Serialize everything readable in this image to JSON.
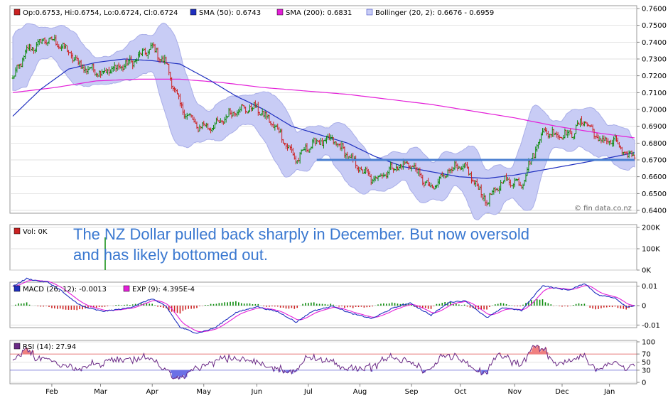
{
  "chart_data": {
    "type": "line",
    "price_panel": {
      "legend": {
        "ohlc": "Op:0.6753, Hi:0.6754, Lo:0.6724, Cl:0.6724",
        "sma50": "SMA (50): 0.6743",
        "sma200": "SMA (200): 0.6831",
        "bollinger": "Bollinger (20, 2): 0.6676 - 0.6959"
      },
      "ylim": [
        0.64,
        0.76
      ],
      "yticks": [
        "0.7600",
        "0.7500",
        "0.7400",
        "0.7300",
        "0.7200",
        "0.7100",
        "0.7000",
        "0.6900",
        "0.6800",
        "0.6700",
        "0.6600",
        "0.6500",
        "0.6400"
      ],
      "price_anchors": [
        [
          0,
          0.718
        ],
        [
          10,
          0.735
        ],
        [
          25,
          0.742
        ],
        [
          35,
          0.738
        ],
        [
          50,
          0.725
        ],
        [
          65,
          0.722
        ],
        [
          85,
          0.728
        ],
        [
          100,
          0.737
        ],
        [
          110,
          0.727
        ],
        [
          120,
          0.702
        ],
        [
          132,
          0.69
        ],
        [
          145,
          0.69
        ],
        [
          160,
          0.7
        ],
        [
          175,
          0.701
        ],
        [
          190,
          0.688
        ],
        [
          203,
          0.67
        ],
        [
          215,
          0.68
        ],
        [
          230,
          0.682
        ],
        [
          245,
          0.668
        ],
        [
          258,
          0.658
        ],
        [
          272,
          0.665
        ],
        [
          285,
          0.668
        ],
        [
          300,
          0.652
        ],
        [
          313,
          0.665
        ],
        [
          325,
          0.665
        ],
        [
          340,
          0.645
        ],
        [
          352,
          0.658
        ],
        [
          365,
          0.656
        ],
        [
          380,
          0.687
        ],
        [
          392,
          0.685
        ],
        [
          400,
          0.685
        ],
        [
          410,
          0.694
        ],
        [
          420,
          0.682
        ],
        [
          432,
          0.681
        ],
        [
          440,
          0.672
        ],
        [
          446,
          0.674
        ]
      ],
      "sma50_anchors": [
        [
          0,
          0.696
        ],
        [
          20,
          0.712
        ],
        [
          40,
          0.724
        ],
        [
          60,
          0.728
        ],
        [
          80,
          0.73
        ],
        [
          100,
          0.729
        ],
        [
          120,
          0.727
        ],
        [
          140,
          0.718
        ],
        [
          160,
          0.708
        ],
        [
          180,
          0.7
        ],
        [
          200,
          0.69
        ],
        [
          220,
          0.685
        ],
        [
          240,
          0.68
        ],
        [
          260,
          0.672
        ],
        [
          280,
          0.666
        ],
        [
          300,
          0.663
        ],
        [
          320,
          0.66
        ],
        [
          340,
          0.659
        ],
        [
          360,
          0.661
        ],
        [
          380,
          0.664
        ],
        [
          400,
          0.667
        ],
        [
          420,
          0.67
        ],
        [
          446,
          0.6743
        ]
      ],
      "sma200_anchors": [
        [
          0,
          0.71
        ],
        [
          30,
          0.713
        ],
        [
          60,
          0.717
        ],
        [
          90,
          0.718
        ],
        [
          120,
          0.718
        ],
        [
          150,
          0.716
        ],
        [
          180,
          0.713
        ],
        [
          210,
          0.711
        ],
        [
          240,
          0.709
        ],
        [
          270,
          0.706
        ],
        [
          300,
          0.703
        ],
        [
          330,
          0.699
        ],
        [
          360,
          0.695
        ],
        [
          390,
          0.69
        ],
        [
          420,
          0.686
        ],
        [
          446,
          0.6831
        ]
      ],
      "support_line": {
        "value": 0.67,
        "from_index": 218,
        "to_index": 446
      },
      "bollinger_halfwidth": 0.0145,
      "watermark": "© fin data.co.nz"
    },
    "volume_panel": {
      "legend": "Vol: 0K",
      "yticks": [
        "200K",
        "100K",
        "0K"
      ],
      "annotation_line1": "The NZ Dollar pulled back sharply in December. But now oversold",
      "annotation_line2": "and has likely bottomed out."
    },
    "macd_panel": {
      "legend_macd": "MACD (26, 12): -0.0013",
      "legend_exp": "EXP (9): 4.395E-4",
      "yticks": [
        "0.01",
        "0",
        "-0.01"
      ],
      "ylim": [
        -0.011,
        0.011
      ]
    },
    "rsi_panel": {
      "legend": "RSI (14): 27.94",
      "yticks": [
        "100",
        "70",
        "50",
        "30",
        "0"
      ],
      "ylim": [
        0,
        100
      ],
      "overbought": 70,
      "oversold": 30
    },
    "x_labels": [
      {
        "label": "Feb",
        "index": 28
      },
      {
        "label": "Mar",
        "index": 63
      },
      {
        "label": "Apr",
        "index": 100
      },
      {
        "label": "May",
        "index": 137
      },
      {
        "label": "Jun",
        "index": 175
      },
      {
        "label": "Jul",
        "index": 212
      },
      {
        "label": "Aug",
        "index": 249
      },
      {
        "label": "Sep",
        "index": 286
      },
      {
        "label": "Oct",
        "index": 321
      },
      {
        "label": "Nov",
        "index": 360
      },
      {
        "label": "Dec",
        "index": 394
      },
      {
        "label": "Jan",
        "index": 428
      }
    ],
    "num_bars": 447
  },
  "colors": {
    "up": "#0a8a0a",
    "down": "#cc2222",
    "sma50": "#1f2fbf",
    "sma200": "#e41fd8",
    "boll_fill": "#c8ccf5",
    "boll_edge": "#a9aee8",
    "support": "#4a7fd0",
    "macd": "#1f2fbf",
    "exp": "#e41fd8",
    "rsi_line": "#6b2a87",
    "rsi_over": "#f08080",
    "rsi_under": "#6b70e6",
    "annotation": "#3a78d0"
  }
}
